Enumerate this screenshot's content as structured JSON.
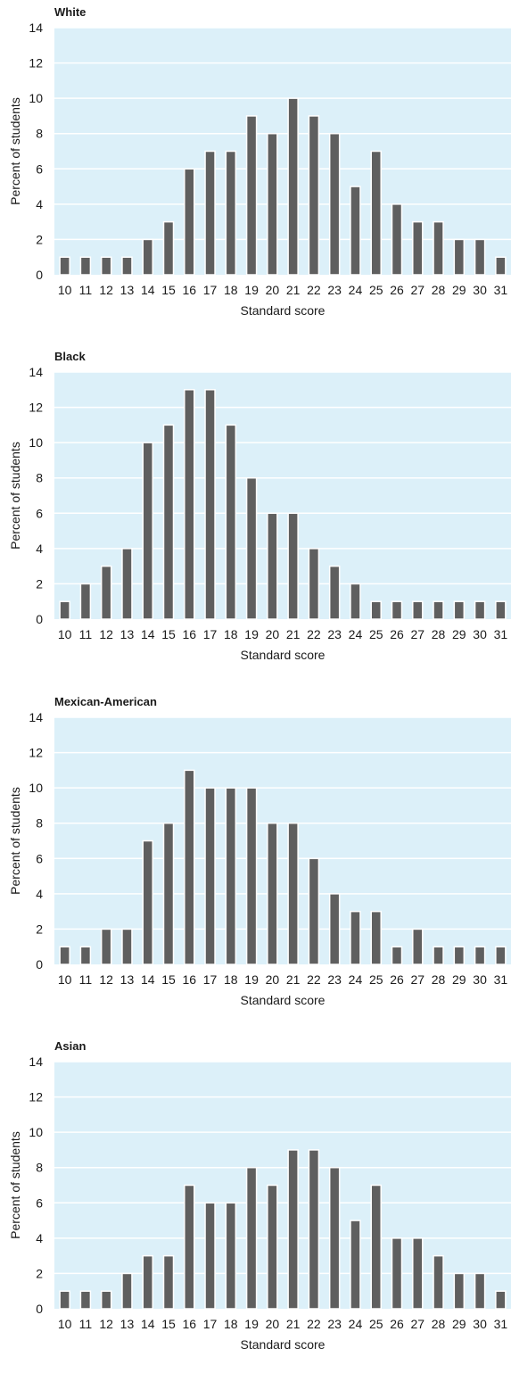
{
  "chart_data": [
    {
      "type": "bar",
      "title": "White",
      "xlabel": "Standard score",
      "ylabel": "Percent of students",
      "ylim": [
        0,
        14
      ],
      "yticks": [
        0,
        2,
        4,
        6,
        8,
        10,
        12,
        14
      ],
      "grid": true,
      "categories": [
        "10",
        "11",
        "12",
        "13",
        "14",
        "15",
        "16",
        "17",
        "18",
        "19",
        "20",
        "21",
        "22",
        "23",
        "24",
        "25",
        "26",
        "27",
        "28",
        "29",
        "30",
        "31"
      ],
      "values": [
        1,
        1,
        1,
        1,
        2,
        3,
        6,
        7,
        7,
        9,
        8,
        10,
        9,
        8,
        5,
        7,
        4,
        3,
        3,
        2,
        2,
        1
      ]
    },
    {
      "type": "bar",
      "title": "Black",
      "xlabel": "Standard score",
      "ylabel": "Percent of students",
      "ylim": [
        0,
        14
      ],
      "yticks": [
        0,
        2,
        4,
        6,
        8,
        10,
        12,
        14
      ],
      "grid": true,
      "categories": [
        "10",
        "11",
        "12",
        "13",
        "14",
        "15",
        "16",
        "17",
        "18",
        "19",
        "20",
        "21",
        "22",
        "23",
        "24",
        "25",
        "26",
        "27",
        "28",
        "29",
        "30",
        "31"
      ],
      "values": [
        1,
        2,
        3,
        4,
        10,
        11,
        13,
        13,
        11,
        8,
        6,
        6,
        4,
        3,
        2,
        1,
        1,
        1,
        1,
        1,
        1,
        1
      ]
    },
    {
      "type": "bar",
      "title": "Mexican-American",
      "xlabel": "Standard score",
      "ylabel": "Percent of students",
      "ylim": [
        0,
        14
      ],
      "yticks": [
        0,
        2,
        4,
        6,
        8,
        10,
        12,
        14
      ],
      "grid": true,
      "categories": [
        "10",
        "11",
        "12",
        "13",
        "14",
        "15",
        "16",
        "17",
        "18",
        "19",
        "20",
        "21",
        "22",
        "23",
        "24",
        "25",
        "26",
        "27",
        "28",
        "29",
        "30",
        "31"
      ],
      "values": [
        1,
        1,
        2,
        2,
        7,
        8,
        11,
        10,
        10,
        10,
        8,
        8,
        6,
        4,
        3,
        3,
        1,
        2,
        1,
        1,
        1,
        1
      ]
    },
    {
      "type": "bar",
      "title": "Asian",
      "xlabel": "Standard score",
      "ylabel": "Percent of students",
      "ylim": [
        0,
        14
      ],
      "yticks": [
        0,
        2,
        4,
        6,
        8,
        10,
        12,
        14
      ],
      "grid": true,
      "categories": [
        "10",
        "11",
        "12",
        "13",
        "14",
        "15",
        "16",
        "17",
        "18",
        "19",
        "20",
        "21",
        "22",
        "23",
        "24",
        "25",
        "26",
        "27",
        "28",
        "29",
        "30",
        "31"
      ],
      "values": [
        1,
        1,
        1,
        2,
        3,
        3,
        7,
        6,
        6,
        8,
        7,
        9,
        9,
        8,
        5,
        7,
        4,
        4,
        3,
        2,
        2,
        1
      ]
    }
  ],
  "colors": {
    "plot_background": "#dcf0f9",
    "gridline": "#ffffff",
    "bar": "#5f5f5f",
    "bar_outline": "#ffffff",
    "text": "#1a1a1a"
  }
}
